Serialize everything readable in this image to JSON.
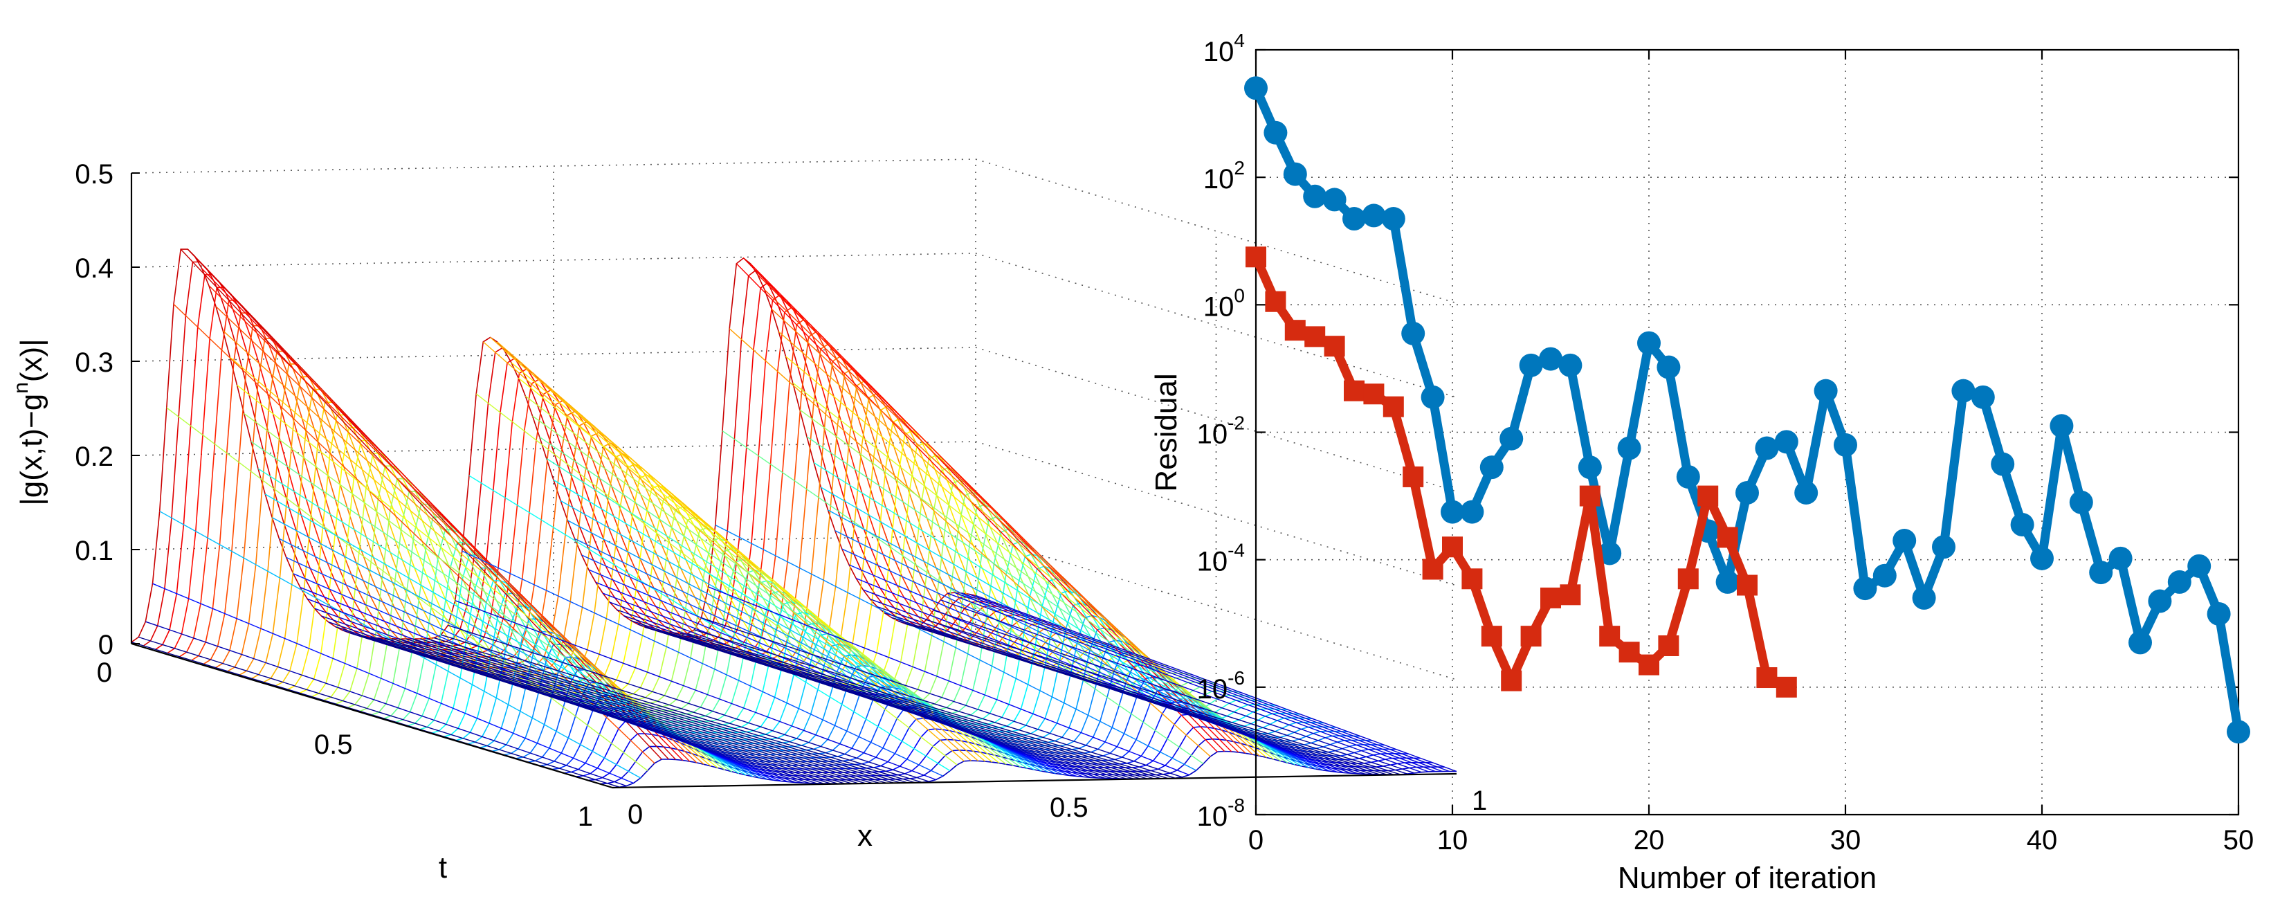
{
  "chart_data": [
    {
      "type": "surface",
      "title": "",
      "xlabel": "x",
      "ylabel": "t",
      "zlabel": "|g(x,t)−gⁿ(x)|",
      "zlabel_base": "|g(x,t)−g",
      "zlabel_sup": "n",
      "zlabel_tail": "(x)|",
      "x_ticks": [
        "0",
        "0.5",
        "1"
      ],
      "t_ticks": [
        "0",
        "0.5",
        "1"
      ],
      "z_ticks": [
        "0",
        "0.1",
        "0.2",
        "0.3",
        "0.4",
        "0.5"
      ],
      "zlim": [
        0,
        0.5
      ],
      "xlim": [
        0,
        1
      ],
      "tlim": [
        0,
        1
      ],
      "ridges": [
        {
          "x_center": 0.06,
          "peak": 0.42
        },
        {
          "x_center": 0.42,
          "peak": 0.32
        },
        {
          "x_center": 0.72,
          "peak": 0.4
        },
        {
          "x_center": 0.97,
          "peak": 0.04
        }
      ],
      "colormap": "jet"
    },
    {
      "type": "line",
      "title": "",
      "xlabel": "Number of iteration",
      "ylabel": "Residual",
      "yscale": "log",
      "xlim": [
        0,
        50
      ],
      "ylim_exp": [
        -8,
        4
      ],
      "x_ticks": [
        "0",
        "10",
        "20",
        "30",
        "40",
        "50"
      ],
      "y_tick_base": "10",
      "y_tick_exps": [
        "-8",
        "-6",
        "-4",
        "-2",
        "0",
        "2",
        "4"
      ],
      "grid": true,
      "series": [
        {
          "name": "blue-circle",
          "color": "#0077bd",
          "marker": "circle",
          "x": [
            0,
            1,
            2,
            3,
            4,
            5,
            6,
            7,
            8,
            9,
            10,
            11,
            12,
            13,
            14,
            15,
            16,
            17,
            18,
            19,
            20,
            21,
            22,
            23,
            24,
            25,
            26,
            27,
            28,
            29,
            30,
            31,
            32,
            33,
            34,
            35,
            36,
            37,
            38,
            39,
            40,
            41,
            42,
            43,
            44,
            45,
            46,
            47,
            48,
            49,
            50
          ],
          "log10_y": [
            3.4,
            2.7,
            2.05,
            1.7,
            1.65,
            1.35,
            1.4,
            1.35,
            -0.45,
            -1.45,
            -3.25,
            -3.25,
            -2.55,
            -2.1,
            -0.95,
            -0.85,
            -0.95,
            -2.55,
            -3.9,
            -2.25,
            -0.6,
            -0.98,
            -2.7,
            -3.55,
            -4.35,
            -2.95,
            -2.25,
            -2.15,
            -2.95,
            -1.35,
            -2.2,
            -4.45,
            -4.25,
            -3.7,
            -4.6,
            -3.8,
            -1.35,
            -1.45,
            -2.5,
            -3.45,
            -3.98,
            -1.9,
            -3.1,
            -4.2,
            -3.98,
            -5.3,
            -4.65,
            -4.35,
            -4.1,
            -4.85,
            -6.7
          ]
        },
        {
          "name": "red-square",
          "color": "#d62b10",
          "marker": "square",
          "x": [
            0,
            1,
            2,
            3,
            4,
            5,
            6,
            7,
            8,
            9,
            10,
            11,
            12,
            13,
            14,
            15,
            16,
            17,
            18,
            19,
            20,
            21,
            22,
            23,
            24,
            25,
            26,
            27
          ],
          "log10_y": [
            0.75,
            0.05,
            -0.4,
            -0.5,
            -0.65,
            -1.35,
            -1.4,
            -1.6,
            -2.7,
            -4.15,
            -3.8,
            -4.3,
            -5.2,
            -5.9,
            -5.2,
            -4.6,
            -4.55,
            -3.0,
            -5.2,
            -5.45,
            -5.65,
            -5.35,
            -4.3,
            -3.0,
            -3.65,
            -4.4,
            -5.85,
            -6.0
          ]
        }
      ]
    }
  ]
}
